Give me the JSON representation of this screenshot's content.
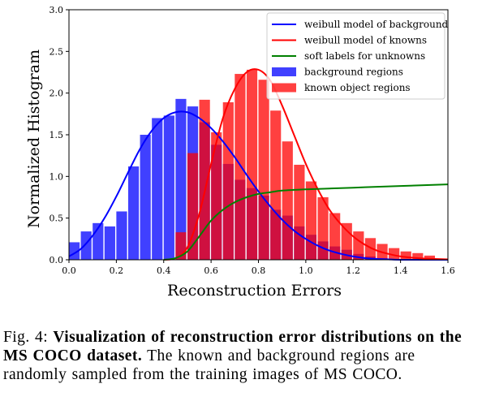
{
  "chart_data": {
    "type": "bar",
    "xlabel": "Reconstruction Errors",
    "ylabel": "Normalized Histogram",
    "xlim": [
      0.0,
      1.6
    ],
    "ylim": [
      0.0,
      3.0
    ],
    "xticks": [
      "0.0",
      "0.2",
      "0.4",
      "0.6",
      "0.8",
      "1.0",
      "1.2",
      "1.4",
      "1.6"
    ],
    "yticks": [
      "0.0",
      "0.5",
      "1.0",
      "1.5",
      "2.0",
      "2.5",
      "3.0"
    ],
    "grid": false,
    "legend_position": "top-right",
    "bin_width": 0.05,
    "bar_series": [
      {
        "name": "background regions",
        "color": "#0000ff",
        "bins": [
          [
            0.0,
            0.21
          ],
          [
            0.05,
            0.34
          ],
          [
            0.1,
            0.44
          ],
          [
            0.15,
            0.4
          ],
          [
            0.2,
            0.58
          ],
          [
            0.25,
            1.12
          ],
          [
            0.3,
            1.5
          ],
          [
            0.35,
            1.7
          ],
          [
            0.4,
            1.73
          ],
          [
            0.45,
            1.93
          ],
          [
            0.5,
            1.84
          ],
          [
            0.55,
            1.65
          ],
          [
            0.6,
            1.38
          ],
          [
            0.65,
            1.15
          ],
          [
            0.7,
            0.96
          ],
          [
            0.75,
            0.86
          ],
          [
            0.8,
            0.77
          ],
          [
            0.85,
            0.6
          ],
          [
            0.9,
            0.53
          ],
          [
            0.95,
            0.4
          ],
          [
            1.0,
            0.3
          ],
          [
            1.05,
            0.22
          ],
          [
            1.1,
            0.16
          ],
          [
            1.15,
            0.12
          ],
          [
            1.2,
            0.07
          ],
          [
            1.25,
            0.04
          ],
          [
            1.3,
            0.02
          ]
        ]
      },
      {
        "name": "known object regions",
        "color": "#ff0000",
        "bins": [
          [
            0.45,
            0.33
          ],
          [
            0.5,
            1.28
          ],
          [
            0.55,
            1.92
          ],
          [
            0.6,
            1.53
          ],
          [
            0.65,
            1.89
          ],
          [
            0.7,
            2.23
          ],
          [
            0.75,
            2.28
          ],
          [
            0.8,
            2.16
          ],
          [
            0.85,
            1.79
          ],
          [
            0.9,
            1.42
          ],
          [
            0.95,
            1.14
          ],
          [
            1.0,
            0.94
          ],
          [
            1.05,
            0.75
          ],
          [
            1.1,
            0.56
          ],
          [
            1.15,
            0.44
          ],
          [
            1.2,
            0.34
          ],
          [
            1.25,
            0.26
          ],
          [
            1.3,
            0.19
          ],
          [
            1.35,
            0.14
          ],
          [
            1.4,
            0.1
          ],
          [
            1.45,
            0.08
          ],
          [
            1.5,
            0.05
          ]
        ]
      }
    ],
    "line_series": [
      {
        "name": "weibull model of background",
        "color": "#0000ff",
        "points": [
          [
            0.0,
            0.04
          ],
          [
            0.05,
            0.13
          ],
          [
            0.1,
            0.29
          ],
          [
            0.15,
            0.5
          ],
          [
            0.2,
            0.76
          ],
          [
            0.25,
            1.05
          ],
          [
            0.3,
            1.33
          ],
          [
            0.35,
            1.55
          ],
          [
            0.4,
            1.7
          ],
          [
            0.45,
            1.77
          ],
          [
            0.5,
            1.77
          ],
          [
            0.55,
            1.7
          ],
          [
            0.6,
            1.58
          ],
          [
            0.65,
            1.42
          ],
          [
            0.7,
            1.23
          ],
          [
            0.75,
            1.02
          ],
          [
            0.8,
            0.82
          ],
          [
            0.85,
            0.64
          ],
          [
            0.9,
            0.48
          ],
          [
            0.95,
            0.35
          ],
          [
            1.0,
            0.25
          ],
          [
            1.05,
            0.17
          ],
          [
            1.1,
            0.11
          ],
          [
            1.15,
            0.07
          ],
          [
            1.2,
            0.04
          ],
          [
            1.25,
            0.02
          ],
          [
            1.3,
            0.01
          ],
          [
            1.35,
            0.005
          ],
          [
            1.4,
            0.0
          ],
          [
            1.6,
            0.0
          ]
        ]
      },
      {
        "name": "weibull model of knowns",
        "color": "#ff0000",
        "points": [
          [
            0.4,
            0.0
          ],
          [
            0.45,
            0.02
          ],
          [
            0.5,
            0.15
          ],
          [
            0.55,
            0.55
          ],
          [
            0.6,
            1.15
          ],
          [
            0.65,
            1.7
          ],
          [
            0.7,
            2.05
          ],
          [
            0.75,
            2.25
          ],
          [
            0.8,
            2.28
          ],
          [
            0.85,
            2.15
          ],
          [
            0.9,
            1.85
          ],
          [
            0.95,
            1.5
          ],
          [
            1.0,
            1.15
          ],
          [
            1.05,
            0.85
          ],
          [
            1.1,
            0.6
          ],
          [
            1.15,
            0.42
          ],
          [
            1.2,
            0.28
          ],
          [
            1.25,
            0.18
          ],
          [
            1.3,
            0.11
          ],
          [
            1.35,
            0.07
          ],
          [
            1.4,
            0.04
          ],
          [
            1.45,
            0.025
          ],
          [
            1.5,
            0.015
          ],
          [
            1.6,
            0.005
          ]
        ]
      },
      {
        "name": "soft labels for unknowns",
        "color": "#008000",
        "points": [
          [
            0.4,
            0.0
          ],
          [
            0.45,
            0.02
          ],
          [
            0.5,
            0.1
          ],
          [
            0.55,
            0.28
          ],
          [
            0.6,
            0.47
          ],
          [
            0.65,
            0.6
          ],
          [
            0.7,
            0.69
          ],
          [
            0.75,
            0.75
          ],
          [
            0.8,
            0.79
          ],
          [
            0.85,
            0.81
          ],
          [
            0.9,
            0.83
          ],
          [
            1.0,
            0.845
          ],
          [
            1.1,
            0.855
          ],
          [
            1.2,
            0.865
          ],
          [
            1.3,
            0.875
          ],
          [
            1.4,
            0.885
          ],
          [
            1.5,
            0.895
          ],
          [
            1.6,
            0.905
          ]
        ]
      }
    ]
  },
  "caption": {
    "prefix": "Fig. 4: ",
    "bold": "Visualization of reconstruction error distributions on the MS COCO dataset.",
    "rest": " The known and background regions are randomly sampled from the training images of MS COCO."
  }
}
